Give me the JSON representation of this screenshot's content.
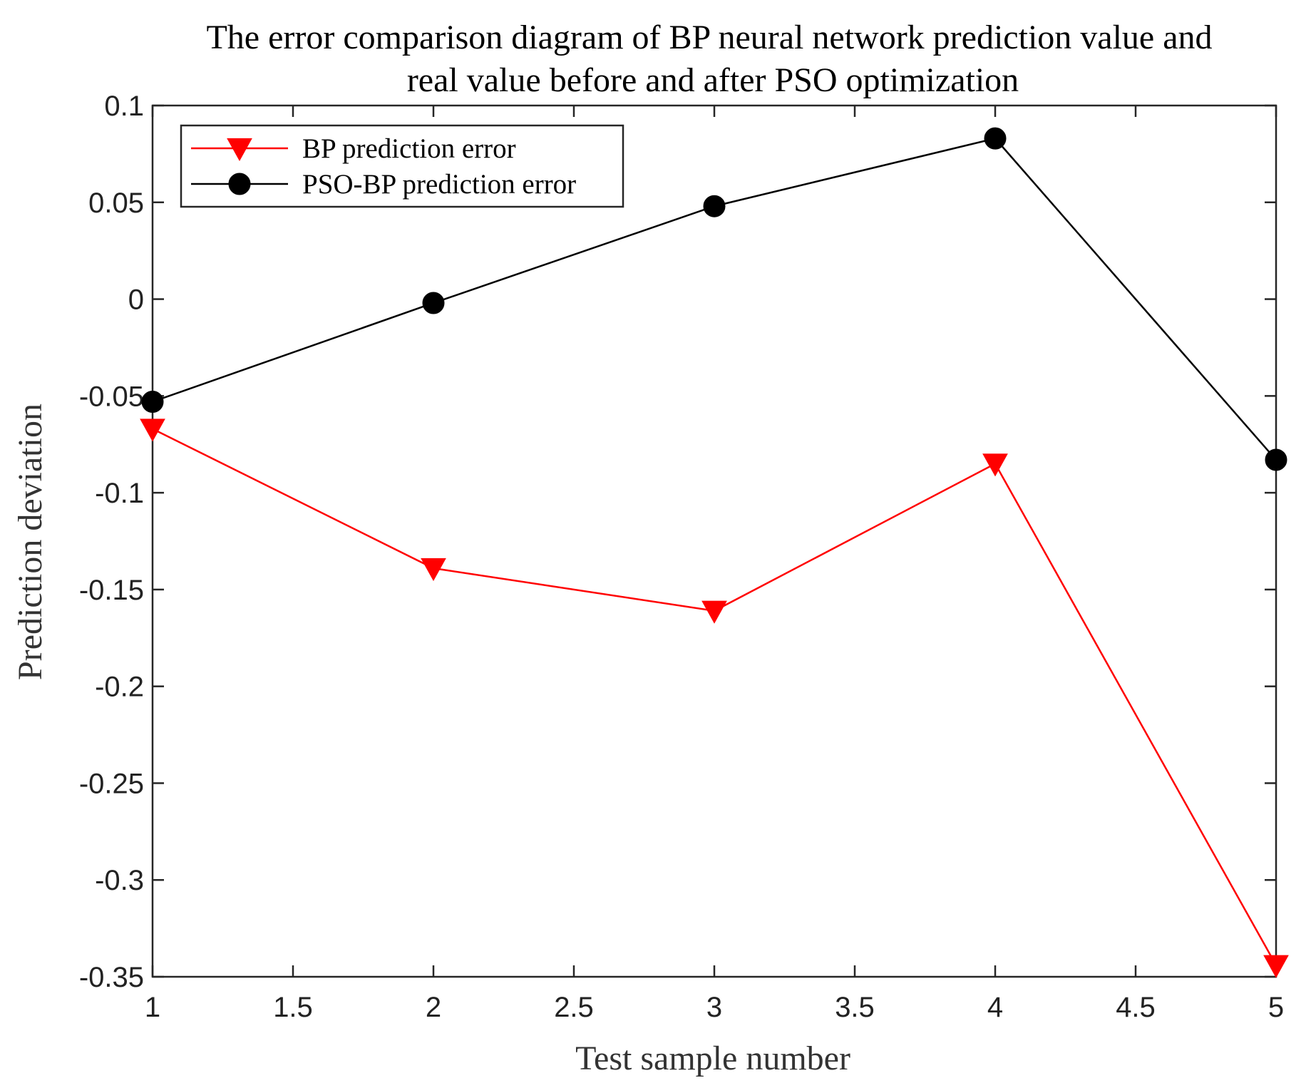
{
  "chart_data": {
    "type": "line",
    "title": [
      "The error comparison diagram of BP neural network prediction value and",
      "real value before and after PSO optimization"
    ],
    "xlabel": "Test sample number",
    "ylabel": "Prediction deviation",
    "xlim": [
      1,
      5
    ],
    "ylim": [
      -0.35,
      0.1
    ],
    "xticks": [
      1,
      1.5,
      2,
      2.5,
      3,
      3.5,
      4,
      4.5,
      5
    ],
    "xtick_labels": [
      "1",
      "1.5",
      "2",
      "2.5",
      "3",
      "3.5",
      "4",
      "4.5",
      "5"
    ],
    "yticks": [
      0.1,
      0.05,
      0,
      -0.05,
      -0.1,
      -0.15,
      -0.2,
      -0.25,
      -0.3,
      -0.35
    ],
    "ytick_labels": [
      "0.1",
      "0.05",
      "0",
      "-0.05",
      "-0.1",
      "-0.15",
      "-0.2",
      "-0.25",
      "-0.3",
      "-0.35"
    ],
    "grid": false,
    "legend_position": "top-left",
    "x": [
      1,
      2,
      3,
      4,
      5
    ],
    "series": [
      {
        "name": "BP prediction error",
        "color": "#ff0000",
        "marker": "triangle-down",
        "values": [
          -0.067,
          -0.139,
          -0.161,
          -0.085,
          -0.344
        ]
      },
      {
        "name": "PSO-BP prediction error",
        "color": "#000000",
        "marker": "circle",
        "values": [
          -0.053,
          -0.002,
          0.048,
          0.083,
          -0.083
        ]
      }
    ]
  }
}
